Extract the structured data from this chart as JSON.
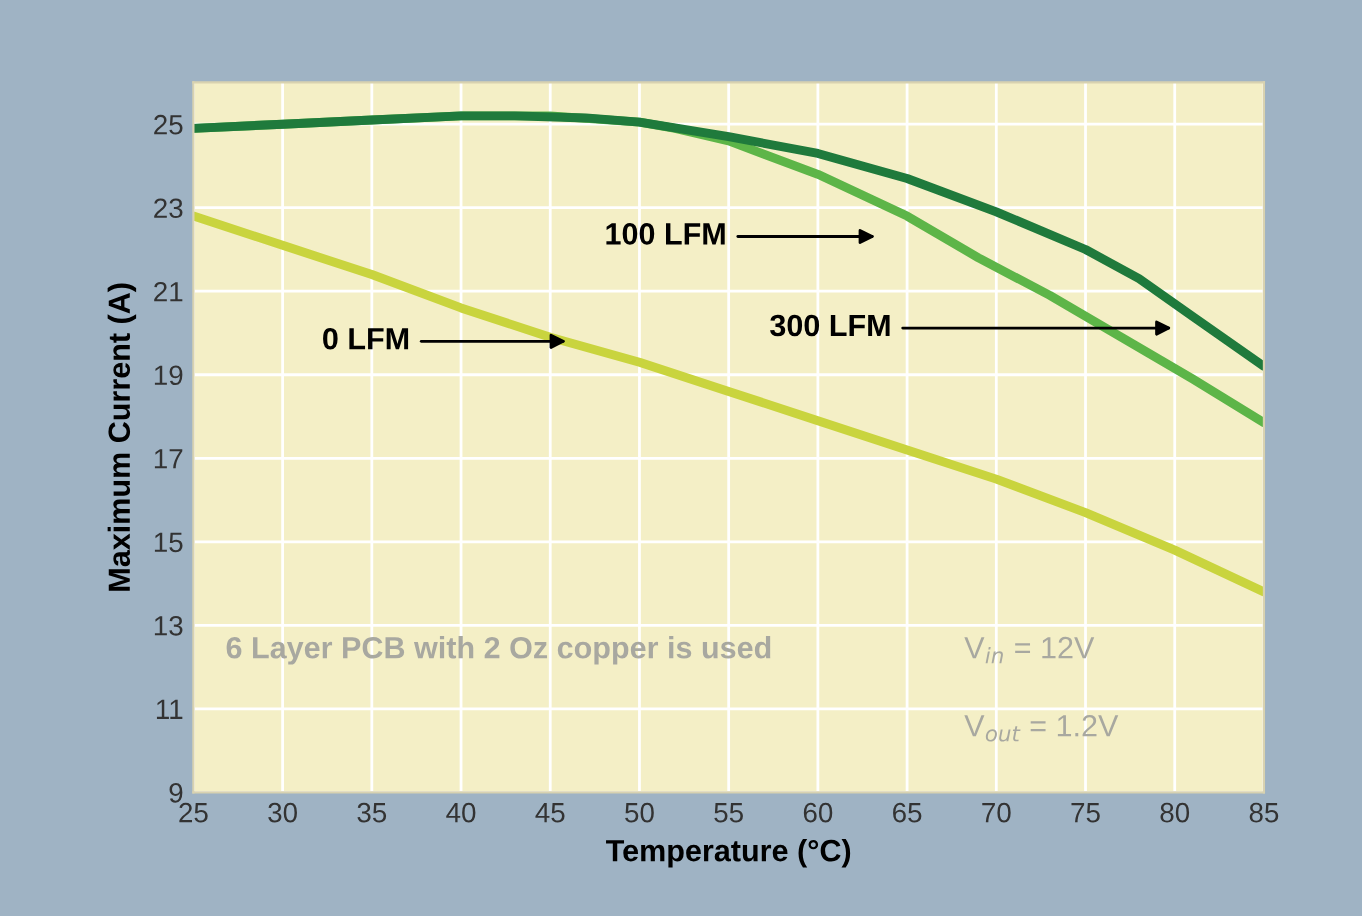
{
  "chart_data": {
    "type": "line",
    "xlabel": "Temperature (°C)",
    "ylabel": "Maximum Current (A)",
    "xlim": [
      25,
      85
    ],
    "xticks": [
      25,
      30,
      35,
      40,
      45,
      50,
      55,
      60,
      65,
      70,
      75,
      80,
      85
    ],
    "ylim": [
      9,
      26
    ],
    "yticks": [
      9,
      11,
      13,
      15,
      17,
      19,
      21,
      23,
      25
    ],
    "grid": true,
    "marker": "none",
    "line_style": "solid",
    "series": [
      {
        "color": "#c9d43e",
        "x": [
          25,
          30,
          35,
          40,
          45,
          50,
          55,
          60,
          65,
          70,
          75,
          80,
          85
        ],
        "values": [
          22.8,
          22.1,
          21.4,
          20.6,
          19.9,
          19.3,
          18.6,
          17.9,
          17.2,
          16.5,
          15.7,
          14.8,
          13.8
        ]
      },
      {
        "color": "#5db548",
        "x": [
          25,
          30,
          35,
          40,
          45,
          50,
          52,
          55,
          60,
          65,
          69,
          73,
          77,
          81,
          85
        ],
        "values": [
          24.9,
          25.0,
          25.1,
          25.2,
          25.2,
          25.05,
          24.9,
          24.6,
          23.8,
          22.8,
          21.8,
          20.9,
          19.9,
          18.9,
          17.85
        ]
      },
      {
        "color": "#1f7a3c",
        "x": [
          25,
          30,
          35,
          40,
          43,
          47,
          50,
          55,
          60,
          65,
          70,
          75,
          78,
          81,
          85
        ],
        "values": [
          24.9,
          25.0,
          25.1,
          25.2,
          25.2,
          25.15,
          25.05,
          24.7,
          24.3,
          23.7,
          22.9,
          22.0,
          21.3,
          20.4,
          19.2
        ]
      }
    ],
    "annotations": [
      {
        "text": "0 LFM",
        "x": 45.9,
        "y": 19.8
      },
      "100 LFM",
      "300 LFM",
      "6 Layer PCB with 2 Oz copper is used",
      "V$_{in}$ = 12V",
      "V$_{out}$ = 1.2V"
    ]
  }
}
